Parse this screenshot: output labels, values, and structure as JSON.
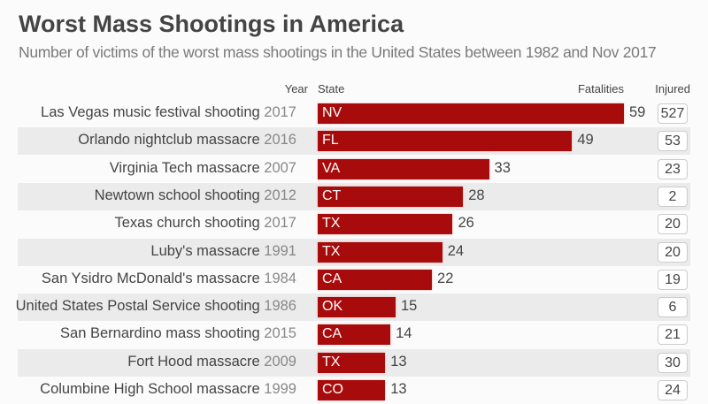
{
  "chart_data": {
    "type": "bar",
    "orientation": "horizontal",
    "title": "Worst Mass Shootings in America",
    "subtitle": "Number of victims of the worst mass shootings in the United States between 1982 and Nov 2017",
    "headers": {
      "year": "Year",
      "state": "State",
      "fatalities": "Fatalities",
      "injured": "Injured"
    },
    "bar_color": "#a80b0b",
    "xlim": [
      0,
      59
    ],
    "rows": [
      {
        "name": "Las Vegas music festival shooting",
        "year": "2017",
        "state": "NV",
        "fatalities": 59,
        "injured": 527
      },
      {
        "name": "Orlando nightclub massacre",
        "year": "2016",
        "state": "FL",
        "fatalities": 49,
        "injured": 53
      },
      {
        "name": "Virginia Tech massacre",
        "year": "2007",
        "state": "VA",
        "fatalities": 33,
        "injured": 23
      },
      {
        "name": "Newtown school shooting",
        "year": "2012",
        "state": "CT",
        "fatalities": 28,
        "injured": 2
      },
      {
        "name": "Texas church shooting",
        "year": "2017",
        "state": "TX",
        "fatalities": 26,
        "injured": 20
      },
      {
        "name": "Luby's massacre",
        "year": "1991",
        "state": "TX",
        "fatalities": 24,
        "injured": 20
      },
      {
        "name": "San Ysidro McDonald's massacre",
        "year": "1984",
        "state": "CA",
        "fatalities": 22,
        "injured": 19
      },
      {
        "name": "United States Postal Service shooting",
        "year": "1986",
        "state": "OK",
        "fatalities": 15,
        "injured": 6
      },
      {
        "name": "San Bernardino mass shooting",
        "year": "2015",
        "state": "CA",
        "fatalities": 14,
        "injured": 21
      },
      {
        "name": "Fort Hood massacre",
        "year": "2009",
        "state": "TX",
        "fatalities": 13,
        "injured": 30
      },
      {
        "name": "Columbine High School massacre",
        "year": "1999",
        "state": "CO",
        "fatalities": 13,
        "injured": 24
      }
    ]
  }
}
